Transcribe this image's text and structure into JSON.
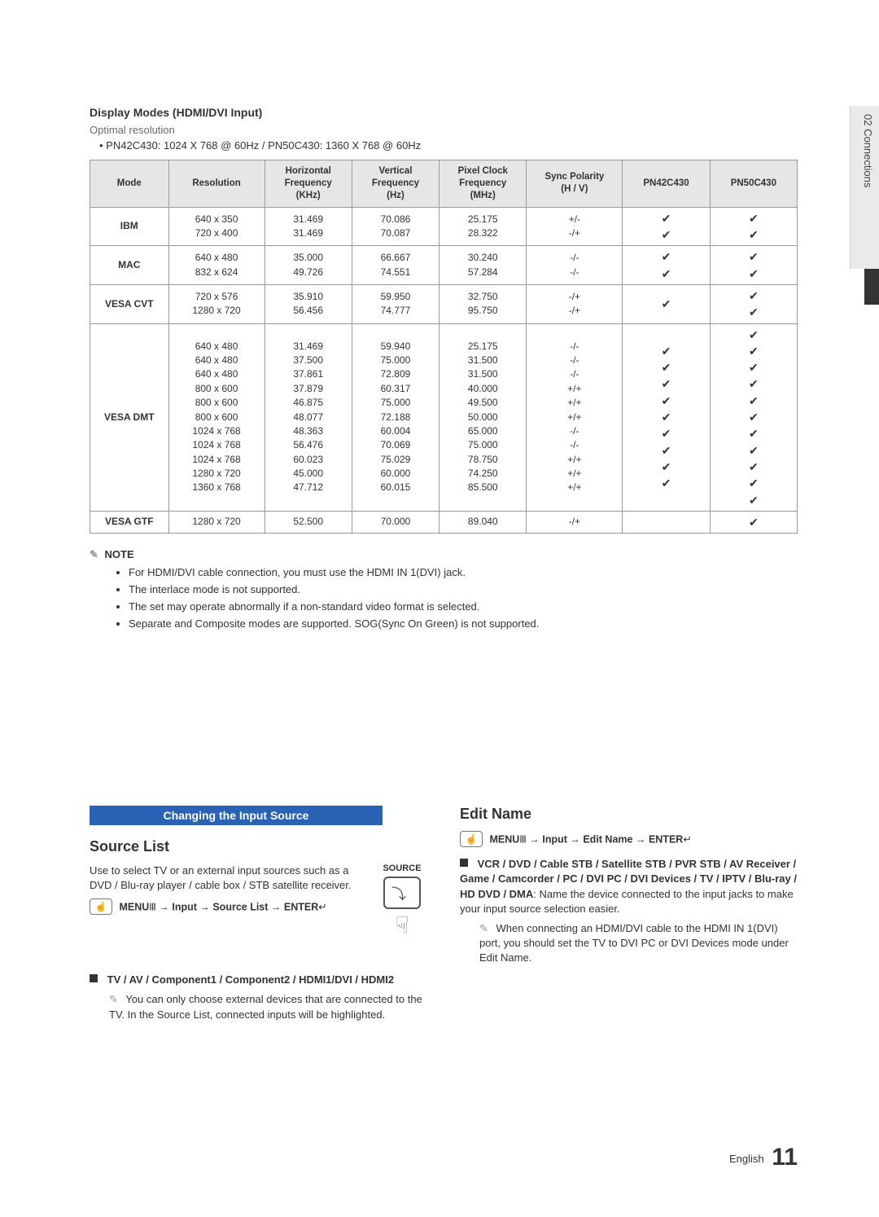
{
  "sideTab": "02   Connections",
  "sectionTitle": "Display Modes (HDMI/DVI Input)",
  "subhead": "Optimal resolution",
  "resLine": "PN42C430: 1024 X 768 @ 60Hz / PN50C430: 1360 X 768 @ 60Hz",
  "table": {
    "headers": [
      "Mode",
      "Resolution",
      "Horizontal\nFrequency\n(KHz)",
      "Vertical\nFrequency\n(Hz)",
      "Pixel Clock\nFrequency\n(MHz)",
      "Sync Polarity\n(H / V)",
      "PN42C430",
      "PN50C430"
    ],
    "colWidths": [
      "90px",
      "110px",
      "100px",
      "100px",
      "100px",
      "110px",
      "100px",
      "100px"
    ],
    "rows": [
      {
        "mode": "IBM",
        "res": "640 x 350\n720 x 400",
        "h": "31.469\n31.469",
        "v": "70.086\n70.087",
        "p": "25.175\n28.322",
        "s": "+/-\n-/+",
        "c42": "✔\n✔",
        "c50": "✔\n✔"
      },
      {
        "mode": "MAC",
        "res": "640 x 480\n832 x 624",
        "h": "35.000\n49.726",
        "v": "66.667\n74.551",
        "p": "30.240\n57.284",
        "s": "-/-\n-/-",
        "c42": "✔\n✔",
        "c50": "✔\n✔"
      },
      {
        "mode": "VESA CVT",
        "res": "720 x 576\n1280 x 720",
        "h": "35.910\n56.456",
        "v": "59.950\n74.777",
        "p": "32.750\n95.750",
        "s": "-/+\n-/+",
        "c42": "✔",
        "c50": "✔\n✔"
      },
      {
        "mode": "VESA DMT",
        "res": "640 x 480\n640 x 480\n640 x 480\n800 x 600\n800 x 600\n800 x 600\n1024 x 768\n1024 x 768\n1024 x 768\n1280 x 720\n1360 x 768",
        "h": "31.469\n37.500\n37.861\n37.879\n46.875\n48.077\n48.363\n56.476\n60.023\n45.000\n47.712",
        "v": "59.940\n75.000\n72.809\n60.317\n75.000\n72.188\n60.004\n70.069\n75.029\n60.000\n60.015",
        "p": "25.175\n31.500\n31.500\n40.000\n49.500\n50.000\n65.000\n75.000\n78.750\n74.250\n85.500",
        "s": "-/-\n-/-\n-/-\n+/+\n+/+\n+/+\n-/-\n-/-\n+/+\n+/+\n+/+",
        "c42": "✔\n✔\n✔\n✔\n✔\n✔\n✔\n✔\n✔",
        "c50": "✔\n✔\n✔\n✔\n✔\n✔\n✔\n✔\n✔\n✔\n✔"
      },
      {
        "mode": "VESA GTF",
        "res": "1280 x 720",
        "h": "52.500",
        "v": "70.000",
        "p": "89.040",
        "s": "-/+",
        "c42": "",
        "c50": "✔"
      }
    ]
  },
  "noteHead": "NOTE",
  "notes": [
    "For HDMI/DVI cable connection, you must use the HDMI IN 1(DVI) jack.",
    "The interlace mode is not supported.",
    "The set may operate abnormally if a non-standard video format is selected.",
    "Separate and Composite modes are supported. SOG(Sync On Green) is not supported."
  ],
  "blueBar": "Changing the Input Source",
  "sourceList": {
    "title": "Source List",
    "para": "Use to select TV or an external input sources such as a DVD / Blu-ray player / cable box / STB satellite receiver.",
    "menuPath": [
      "MENU",
      "Ⅲ",
      " → ",
      "Input",
      " → ",
      "Source List",
      " → ",
      "ENTER",
      "↵"
    ],
    "sourceLabel": "SOURCE",
    "block": "TV / AV / Component1 / Component2 / HDMI1/DVI / HDMI2",
    "subnote": "You can only choose external devices that are connected to the TV. In the Source List, connected inputs will be highlighted."
  },
  "editName": {
    "title": "Edit Name",
    "menuPath": [
      "MENU",
      "Ⅲ",
      " → ",
      "Input",
      " → ",
      "Edit Name",
      " → ",
      "ENTER",
      "↵"
    ],
    "listHead": "VCR / DVD / Cable STB / Satellite STB / PVR STB / AV Receiver / Game / Camcorder / PC / DVI PC / DVI Devices / TV / IPTV / Blu-ray / HD DVD / DMA",
    "listDesc": ": Name the device connected to the input jacks to make your input source selection easier.",
    "subnote": "When connecting an HDMI/DVI cable to the HDMI IN 1(DVI) port, you should set the TV to DVI PC or DVI Devices mode under Edit Name."
  },
  "footerLang": "English",
  "footerPage": "11"
}
